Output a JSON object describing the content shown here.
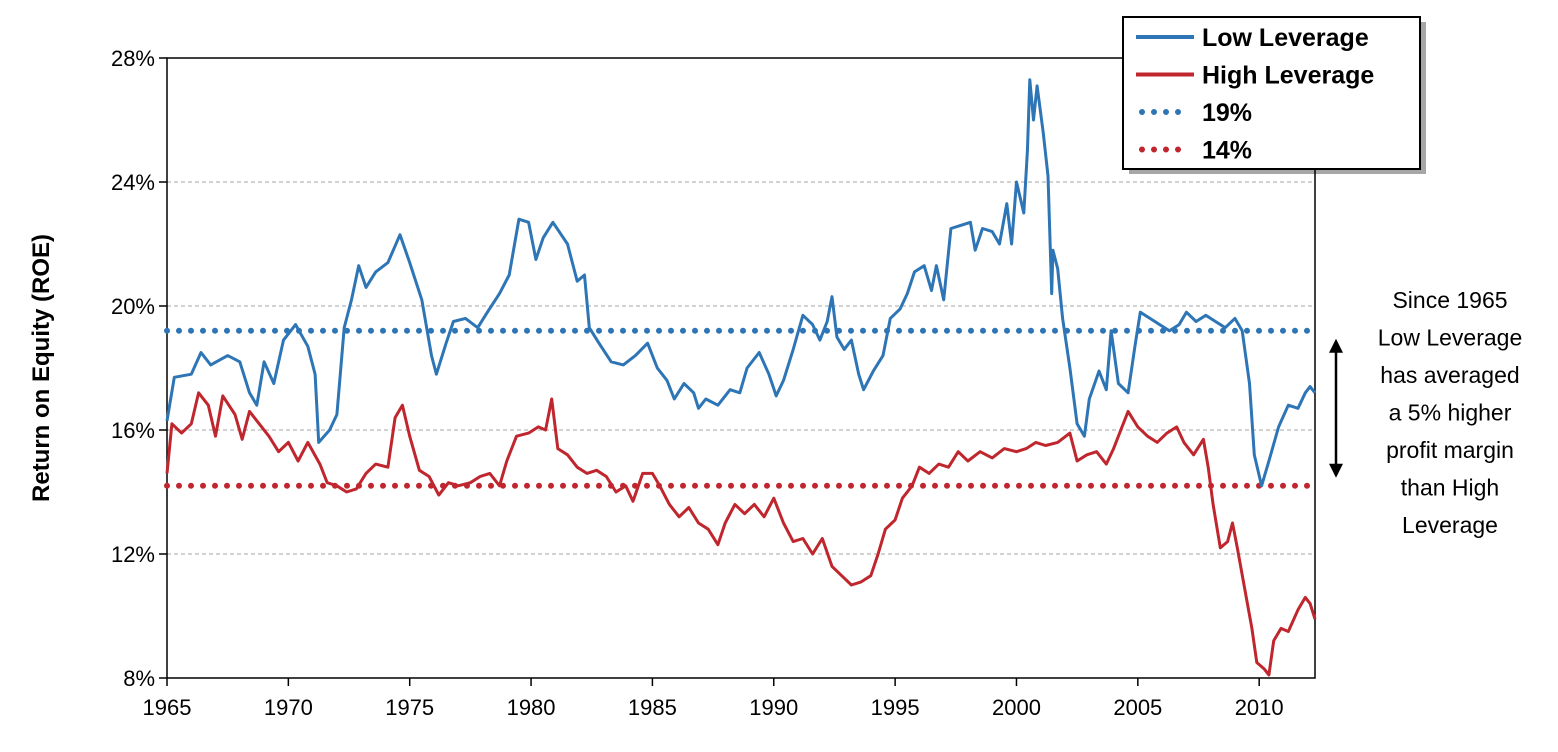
{
  "chart_data": {
    "type": "line",
    "title": "",
    "xlabel": "",
    "ylabel": "Return on Equity (ROE)",
    "xlim": [
      1965,
      2012.3
    ],
    "ylim": [
      8,
      28
    ],
    "x_ticks": [
      "1965",
      "1970",
      "1975",
      "1980",
      "1985",
      "1990",
      "1995",
      "2000",
      "2005",
      "2010"
    ],
    "y_ticks": [
      "8%",
      "12%",
      "16%",
      "20%",
      "24%",
      "28%"
    ],
    "grid": "horizontal dashed",
    "legend_position": "top-right",
    "colors": {
      "low": "#2e75b6",
      "high": "#c0262d"
    },
    "series": [
      {
        "name": "Low Leverage",
        "style": "solid",
        "color": "#2e75b6",
        "points": [
          [
            1965.0,
            16.3
          ],
          [
            1965.3,
            17.7
          ],
          [
            1966.0,
            17.8
          ],
          [
            1966.4,
            18.5
          ],
          [
            1966.8,
            18.1
          ],
          [
            1967.5,
            18.4
          ],
          [
            1968.0,
            18.2
          ],
          [
            1968.4,
            17.2
          ],
          [
            1968.7,
            16.8
          ],
          [
            1969.0,
            18.2
          ],
          [
            1969.4,
            17.5
          ],
          [
            1969.8,
            18.9
          ],
          [
            1970.3,
            19.4
          ],
          [
            1970.8,
            18.7
          ],
          [
            1971.1,
            17.8
          ],
          [
            1971.25,
            15.6
          ],
          [
            1971.7,
            16.0
          ],
          [
            1972.0,
            16.5
          ],
          [
            1972.3,
            19.3
          ],
          [
            1972.6,
            20.2
          ],
          [
            1972.9,
            21.3
          ],
          [
            1973.2,
            20.6
          ],
          [
            1973.6,
            21.1
          ],
          [
            1974.1,
            21.4
          ],
          [
            1974.6,
            22.3
          ],
          [
            1975.0,
            21.4
          ],
          [
            1975.5,
            20.2
          ],
          [
            1975.9,
            18.4
          ],
          [
            1976.1,
            17.8
          ],
          [
            1976.5,
            18.8
          ],
          [
            1976.8,
            19.5
          ],
          [
            1977.3,
            19.6
          ],
          [
            1977.8,
            19.3
          ],
          [
            1978.2,
            19.8
          ],
          [
            1978.7,
            20.4
          ],
          [
            1979.1,
            21.0
          ],
          [
            1979.5,
            22.8
          ],
          [
            1979.9,
            22.7
          ],
          [
            1980.2,
            21.5
          ],
          [
            1980.5,
            22.2
          ],
          [
            1980.9,
            22.7
          ],
          [
            1981.5,
            22.0
          ],
          [
            1981.9,
            20.8
          ],
          [
            1982.2,
            21.0
          ],
          [
            1982.4,
            19.3
          ],
          [
            1982.8,
            18.8
          ],
          [
            1983.3,
            18.2
          ],
          [
            1983.8,
            18.1
          ],
          [
            1984.3,
            18.4
          ],
          [
            1984.8,
            18.8
          ],
          [
            1985.2,
            18.0
          ],
          [
            1985.6,
            17.6
          ],
          [
            1985.9,
            17.0
          ],
          [
            1986.3,
            17.5
          ],
          [
            1986.7,
            17.2
          ],
          [
            1986.9,
            16.7
          ],
          [
            1987.2,
            17.0
          ],
          [
            1987.7,
            16.8
          ],
          [
            1988.2,
            17.3
          ],
          [
            1988.6,
            17.2
          ],
          [
            1988.9,
            18.0
          ],
          [
            1989.4,
            18.5
          ],
          [
            1989.8,
            17.8
          ],
          [
            1990.1,
            17.1
          ],
          [
            1990.4,
            17.6
          ],
          [
            1990.8,
            18.6
          ],
          [
            1991.2,
            19.7
          ],
          [
            1991.6,
            19.4
          ],
          [
            1991.9,
            18.9
          ],
          [
            1992.2,
            19.5
          ],
          [
            1992.4,
            20.3
          ],
          [
            1992.6,
            19.0
          ],
          [
            1992.9,
            18.6
          ],
          [
            1993.2,
            18.9
          ],
          [
            1993.5,
            17.8
          ],
          [
            1993.7,
            17.3
          ],
          [
            1994.1,
            17.9
          ],
          [
            1994.5,
            18.4
          ],
          [
            1994.8,
            19.6
          ],
          [
            1995.2,
            19.9
          ],
          [
            1995.5,
            20.4
          ],
          [
            1995.8,
            21.1
          ],
          [
            1996.2,
            21.3
          ],
          [
            1996.5,
            20.5
          ],
          [
            1996.7,
            21.3
          ],
          [
            1997.0,
            20.2
          ],
          [
            1997.3,
            22.5
          ],
          [
            1997.7,
            22.6
          ],
          [
            1998.1,
            22.7
          ],
          [
            1998.3,
            21.8
          ],
          [
            1998.6,
            22.5
          ],
          [
            1999.0,
            22.4
          ],
          [
            1999.3,
            22.0
          ],
          [
            1999.6,
            23.3
          ],
          [
            1999.8,
            22.0
          ],
          [
            2000.0,
            24.0
          ],
          [
            2000.3,
            23.0
          ],
          [
            2000.45,
            25.0
          ],
          [
            2000.55,
            27.3
          ],
          [
            2000.7,
            26.0
          ],
          [
            2000.85,
            27.1
          ],
          [
            2001.1,
            25.6
          ],
          [
            2001.3,
            24.2
          ],
          [
            2001.45,
            20.4
          ],
          [
            2001.5,
            21.8
          ],
          [
            2001.7,
            21.2
          ],
          [
            2001.9,
            19.6
          ],
          [
            2002.2,
            18.0
          ],
          [
            2002.5,
            16.2
          ],
          [
            2002.8,
            15.8
          ],
          [
            2003.0,
            17.0
          ],
          [
            2003.4,
            17.9
          ],
          [
            2003.7,
            17.3
          ],
          [
            2003.9,
            19.2
          ],
          [
            2004.2,
            17.5
          ],
          [
            2004.6,
            17.2
          ],
          [
            2004.9,
            18.8
          ],
          [
            2005.1,
            19.8
          ],
          [
            2005.5,
            19.6
          ],
          [
            2005.9,
            19.4
          ],
          [
            2006.3,
            19.2
          ],
          [
            2006.7,
            19.4
          ],
          [
            2007.0,
            19.8
          ],
          [
            2007.4,
            19.5
          ],
          [
            2007.8,
            19.7
          ],
          [
            2008.2,
            19.5
          ],
          [
            2008.6,
            19.3
          ],
          [
            2009.0,
            19.6
          ],
          [
            2009.3,
            19.2
          ],
          [
            2009.6,
            17.5
          ],
          [
            2009.8,
            15.2
          ],
          [
            2010.1,
            14.2
          ],
          [
            2010.4,
            15.0
          ],
          [
            2010.8,
            16.1
          ],
          [
            2011.2,
            16.8
          ],
          [
            2011.6,
            16.7
          ],
          [
            2011.9,
            17.2
          ],
          [
            2012.1,
            17.4
          ],
          [
            2012.3,
            17.2
          ]
        ]
      },
      {
        "name": "High Leverage",
        "style": "solid",
        "color": "#c0262d",
        "points": [
          [
            1965.0,
            14.6
          ],
          [
            1965.2,
            16.2
          ],
          [
            1965.6,
            15.9
          ],
          [
            1966.0,
            16.2
          ],
          [
            1966.3,
            17.2
          ],
          [
            1966.7,
            16.8
          ],
          [
            1967.0,
            15.8
          ],
          [
            1967.3,
            17.1
          ],
          [
            1967.8,
            16.5
          ],
          [
            1968.1,
            15.7
          ],
          [
            1968.4,
            16.6
          ],
          [
            1968.8,
            16.2
          ],
          [
            1969.2,
            15.8
          ],
          [
            1969.6,
            15.3
          ],
          [
            1970.0,
            15.6
          ],
          [
            1970.4,
            15.0
          ],
          [
            1970.8,
            15.6
          ],
          [
            1971.3,
            14.9
          ],
          [
            1971.6,
            14.3
          ],
          [
            1972.0,
            14.2
          ],
          [
            1972.4,
            14.0
          ],
          [
            1972.8,
            14.1
          ],
          [
            1973.2,
            14.6
          ],
          [
            1973.6,
            14.9
          ],
          [
            1974.1,
            14.8
          ],
          [
            1974.4,
            16.4
          ],
          [
            1974.7,
            16.8
          ],
          [
            1975.0,
            15.8
          ],
          [
            1975.4,
            14.7
          ],
          [
            1975.8,
            14.5
          ],
          [
            1976.2,
            13.9
          ],
          [
            1976.6,
            14.3
          ],
          [
            1977.0,
            14.2
          ],
          [
            1977.5,
            14.3
          ],
          [
            1977.9,
            14.5
          ],
          [
            1978.3,
            14.6
          ],
          [
            1978.7,
            14.2
          ],
          [
            1979.0,
            15.0
          ],
          [
            1979.4,
            15.8
          ],
          [
            1979.9,
            15.9
          ],
          [
            1980.3,
            16.1
          ],
          [
            1980.6,
            16.0
          ],
          [
            1980.85,
            17.0
          ],
          [
            1981.1,
            15.4
          ],
          [
            1981.5,
            15.2
          ],
          [
            1981.9,
            14.8
          ],
          [
            1982.3,
            14.6
          ],
          [
            1982.7,
            14.7
          ],
          [
            1983.1,
            14.5
          ],
          [
            1983.5,
            14.0
          ],
          [
            1983.9,
            14.2
          ],
          [
            1984.2,
            13.7
          ],
          [
            1984.6,
            14.6
          ],
          [
            1985.0,
            14.6
          ],
          [
            1985.3,
            14.2
          ],
          [
            1985.7,
            13.6
          ],
          [
            1986.1,
            13.2
          ],
          [
            1986.5,
            13.5
          ],
          [
            1986.9,
            13.0
          ],
          [
            1987.3,
            12.8
          ],
          [
            1987.7,
            12.3
          ],
          [
            1988.0,
            13.0
          ],
          [
            1988.4,
            13.6
          ],
          [
            1988.8,
            13.3
          ],
          [
            1989.2,
            13.6
          ],
          [
            1989.6,
            13.2
          ],
          [
            1990.0,
            13.8
          ],
          [
            1990.4,
            13.0
          ],
          [
            1990.8,
            12.4
          ],
          [
            1991.2,
            12.5
          ],
          [
            1991.6,
            12.0
          ],
          [
            1992.0,
            12.5
          ],
          [
            1992.4,
            11.6
          ],
          [
            1992.8,
            11.3
          ],
          [
            1993.2,
            11.0
          ],
          [
            1993.6,
            11.1
          ],
          [
            1994.0,
            11.3
          ],
          [
            1994.3,
            12.0
          ],
          [
            1994.6,
            12.8
          ],
          [
            1995.0,
            13.1
          ],
          [
            1995.3,
            13.8
          ],
          [
            1995.7,
            14.2
          ],
          [
            1996.0,
            14.8
          ],
          [
            1996.4,
            14.6
          ],
          [
            1996.8,
            14.9
          ],
          [
            1997.2,
            14.8
          ],
          [
            1997.6,
            15.3
          ],
          [
            1998.0,
            15.0
          ],
          [
            1998.5,
            15.3
          ],
          [
            1999.0,
            15.1
          ],
          [
            1999.5,
            15.4
          ],
          [
            2000.0,
            15.3
          ],
          [
            2000.4,
            15.4
          ],
          [
            2000.8,
            15.6
          ],
          [
            2001.2,
            15.5
          ],
          [
            2001.7,
            15.6
          ],
          [
            2002.2,
            15.9
          ],
          [
            2002.5,
            15.0
          ],
          [
            2002.9,
            15.2
          ],
          [
            2003.3,
            15.3
          ],
          [
            2003.7,
            14.9
          ],
          [
            2004.0,
            15.4
          ],
          [
            2004.3,
            16.0
          ],
          [
            2004.6,
            16.6
          ],
          [
            2005.0,
            16.1
          ],
          [
            2005.4,
            15.8
          ],
          [
            2005.8,
            15.6
          ],
          [
            2006.2,
            15.9
          ],
          [
            2006.6,
            16.1
          ],
          [
            2006.9,
            15.6
          ],
          [
            2007.3,
            15.2
          ],
          [
            2007.7,
            15.7
          ],
          [
            2007.9,
            14.8
          ],
          [
            2008.1,
            13.6
          ],
          [
            2008.4,
            12.2
          ],
          [
            2008.7,
            12.4
          ],
          [
            2008.9,
            13.0
          ],
          [
            2009.1,
            12.2
          ],
          [
            2009.4,
            10.9
          ],
          [
            2009.7,
            9.6
          ],
          [
            2009.9,
            8.5
          ],
          [
            2010.2,
            8.3
          ],
          [
            2010.4,
            8.1
          ],
          [
            2010.6,
            9.2
          ],
          [
            2010.9,
            9.6
          ],
          [
            2011.2,
            9.5
          ],
          [
            2011.6,
            10.2
          ],
          [
            2011.9,
            10.6
          ],
          [
            2012.1,
            10.4
          ],
          [
            2012.3,
            9.9
          ]
        ]
      },
      {
        "name": "19%",
        "style": "dotted",
        "color": "#2e75b6",
        "constant": 19.2
      },
      {
        "name": "14%",
        "style": "dotted",
        "color": "#c0262d",
        "constant": 14.2
      }
    ],
    "annotation": {
      "lines": [
        "Since 1965",
        "Low Leverage",
        "has averaged",
        "a 5% higher",
        "profit margin",
        "than High",
        "Leverage"
      ],
      "arrow_from": 19.2,
      "arrow_to": 14.2
    }
  }
}
